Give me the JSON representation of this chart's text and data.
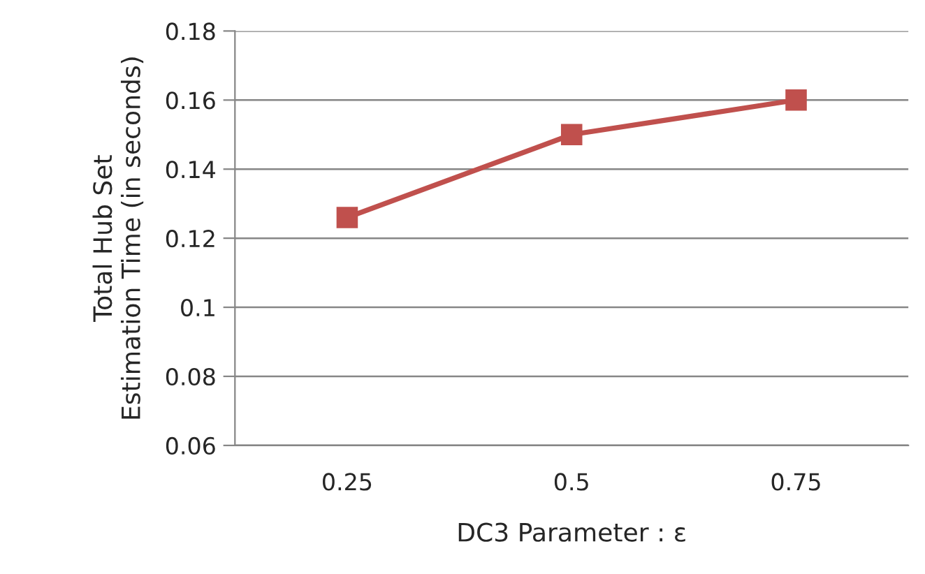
{
  "chart_data": {
    "type": "line",
    "xlabel": "DC3 Parameter : ε",
    "ylabel": "Total Hub Set\nEstimation Time (in seconds)",
    "categories": [
      "0.25",
      "0.5",
      "0.75"
    ],
    "series": [
      {
        "color": "#c0504d",
        "values": [
          0.126,
          0.15,
          0.16
        ]
      }
    ],
    "ylim": [
      0.06,
      0.18
    ],
    "yticks": [
      0.06,
      0.08,
      0.1,
      0.12,
      0.14,
      0.16,
      0.18
    ],
    "grid": "y",
    "marker": "square",
    "line_style": "solid",
    "legend": false
  }
}
